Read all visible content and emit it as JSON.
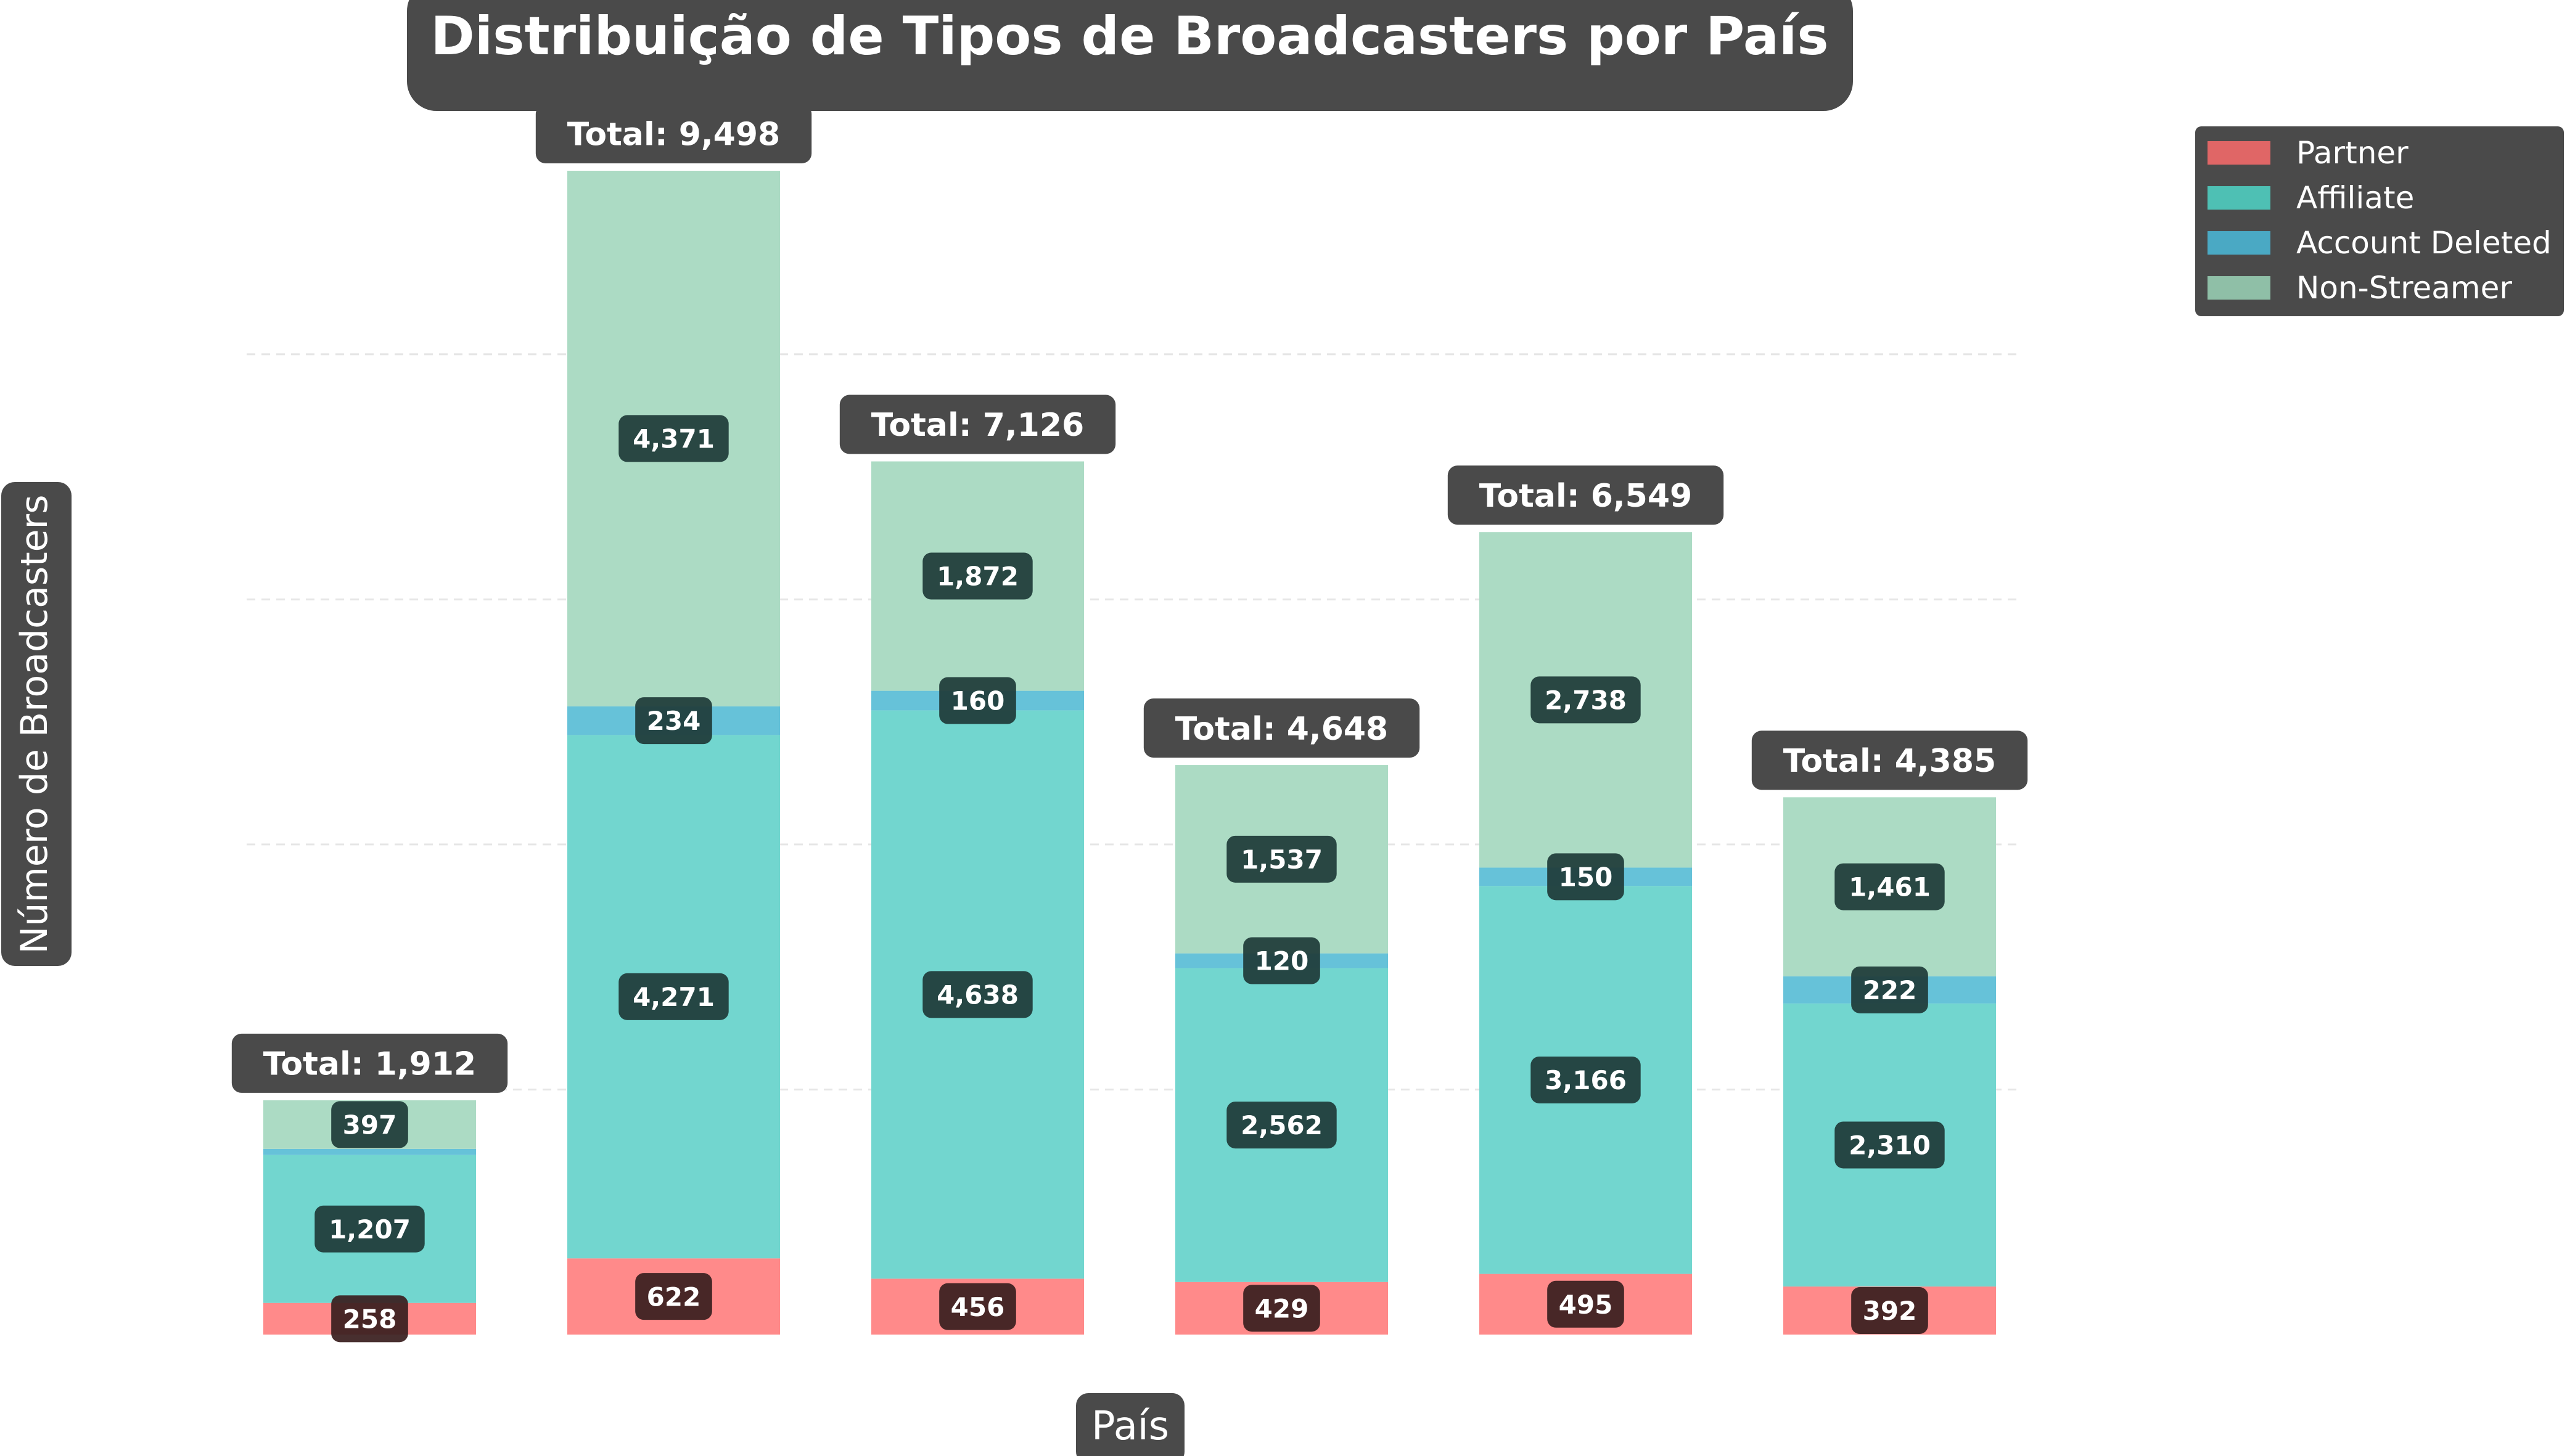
{
  "chart_data": {
    "type": "bar",
    "stacked": true,
    "title": "Distribuição de Tipos de Broadcasters por País",
    "xlabel": "País",
    "ylabel": "Número de Broadcasters",
    "categories": [
      "",
      "",
      "",
      "",
      "",
      ""
    ],
    "series": [
      {
        "name": "Partner",
        "color": "#ff8a8a",
        "legend_color": "#e06666",
        "values": [
          258,
          622,
          456,
          429,
          495,
          392
        ]
      },
      {
        "name": "Affiliate",
        "color": "#72d6cf",
        "legend_color": "#4ec0b4",
        "values": [
          1207,
          4271,
          4638,
          2562,
          3166,
          2310
        ]
      },
      {
        "name": "Account Deleted",
        "color": "#66c2d9",
        "legend_color": "#4aa9c4",
        "values": [
          50,
          234,
          160,
          120,
          150,
          222
        ]
      },
      {
        "name": "Non-Streamer",
        "color": "#acdbc4",
        "legend_color": "#8fbfa7",
        "values": [
          397,
          4371,
          1872,
          1537,
          2738,
          1461
        ]
      }
    ],
    "totals": [
      "Total: 1,912",
      "Total: 9,498",
      "Total: 7,126",
      "Total: 4,648",
      "Total: 6,549",
      "Total: 4,385"
    ],
    "value_labels": [
      [
        "258",
        "622",
        "456",
        "429",
        "495",
        "392"
      ],
      [
        "1,207",
        "4,271",
        "4,638",
        "2,562",
        "3,166",
        "2,310"
      ],
      [
        "",
        "234",
        "160",
        "120",
        "150",
        "222"
      ],
      [
        "397",
        "4,371",
        "1,872",
        "1,537",
        "2,738",
        "1,461"
      ]
    ],
    "ylim": [
      0,
      10000
    ],
    "grid": true,
    "legend_position": "top-right"
  }
}
